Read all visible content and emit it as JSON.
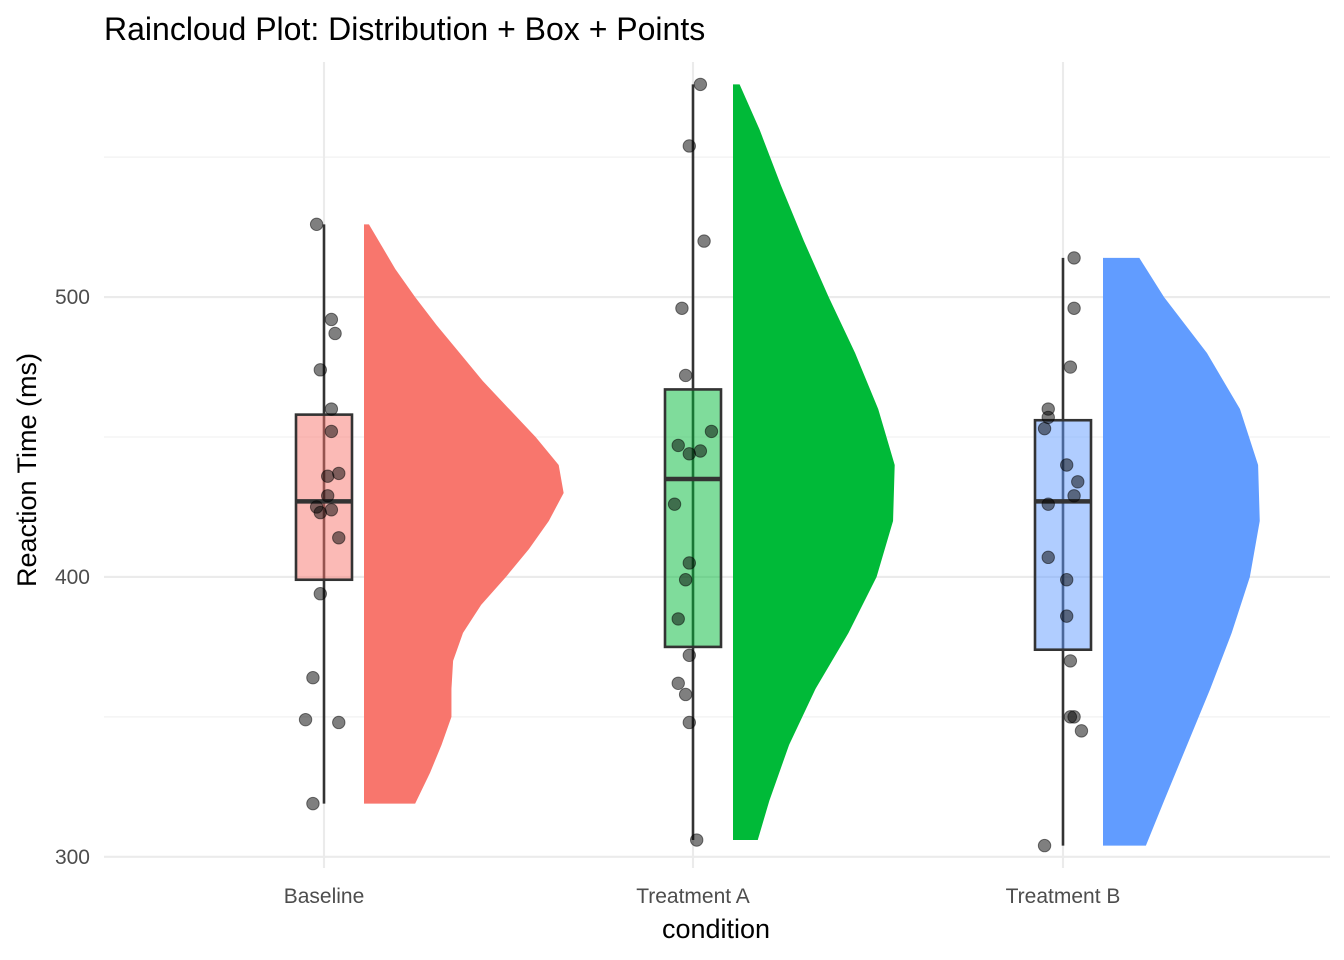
{
  "chart_data": {
    "type": "raincloud",
    "title": "Raincloud Plot: Distribution + Box + Points",
    "xlabel": "condition",
    "ylabel": "Reaction Time (ms)",
    "ylim": [
      296,
      584
    ],
    "y_ticks": [
      300,
      400,
      500
    ],
    "y_minor_ticks": [
      350,
      450,
      550
    ],
    "grid": true,
    "legend": "none",
    "categories": [
      "Baseline",
      "Treatment A",
      "Treatment B"
    ],
    "series": [
      {
        "category": "Baseline",
        "color": "#F8766D",
        "box": {
          "min": 319,
          "q1": 399,
          "median": 427,
          "q3": 458,
          "max": 526
        },
        "density": {
          "y": [
            319,
            330,
            340,
            350,
            360,
            370,
            380,
            390,
            400,
            410,
            420,
            430,
            440,
            450,
            460,
            470,
            480,
            490,
            500,
            510,
            520,
            526
          ],
          "width": [
            0.31,
            0.4,
            0.47,
            0.53,
            0.53,
            0.54,
            0.6,
            0.71,
            0.86,
            1.0,
            1.12,
            1.21,
            1.18,
            1.04,
            0.88,
            0.72,
            0.58,
            0.44,
            0.31,
            0.19,
            0.09,
            0.03
          ]
        },
        "points": [
          {
            "x": -0.02,
            "y": 526
          },
          {
            "x": 0.02,
            "y": 492
          },
          {
            "x": 0.03,
            "y": 487
          },
          {
            "x": -0.01,
            "y": 474
          },
          {
            "x": 0.02,
            "y": 460
          },
          {
            "x": 0.02,
            "y": 452
          },
          {
            "x": 0.04,
            "y": 437
          },
          {
            "x": 0.01,
            "y": 436
          },
          {
            "x": 0.01,
            "y": 429
          },
          {
            "x": -0.02,
            "y": 425
          },
          {
            "x": -0.01,
            "y": 423
          },
          {
            "x": 0.02,
            "y": 424
          },
          {
            "x": 0.04,
            "y": 414
          },
          {
            "x": -0.01,
            "y": 394
          },
          {
            "x": -0.03,
            "y": 364
          },
          {
            "x": -0.05,
            "y": 349
          },
          {
            "x": 0.04,
            "y": 348
          },
          {
            "x": -0.03,
            "y": 319
          }
        ]
      },
      {
        "category": "Treatment A",
        "color": "#00BA38",
        "box": {
          "min": 306,
          "q1": 375,
          "median": 435,
          "q3": 467,
          "max": 576
        },
        "density": {
          "y": [
            306,
            320,
            340,
            360,
            380,
            400,
            420,
            440,
            460,
            480,
            500,
            520,
            540,
            560,
            576
          ],
          "width": [
            0.15,
            0.22,
            0.34,
            0.5,
            0.7,
            0.87,
            0.97,
            0.98,
            0.88,
            0.74,
            0.58,
            0.43,
            0.29,
            0.16,
            0.04
          ]
        },
        "points": [
          {
            "x": 0.02,
            "y": 576
          },
          {
            "x": -0.01,
            "y": 554
          },
          {
            "x": 0.03,
            "y": 520
          },
          {
            "x": -0.03,
            "y": 496
          },
          {
            "x": -0.02,
            "y": 472
          },
          {
            "x": 0.05,
            "y": 452
          },
          {
            "x": -0.04,
            "y": 447
          },
          {
            "x": -0.01,
            "y": 444
          },
          {
            "x": 0.02,
            "y": 445
          },
          {
            "x": -0.05,
            "y": 426
          },
          {
            "x": -0.01,
            "y": 405
          },
          {
            "x": -0.02,
            "y": 399
          },
          {
            "x": -0.04,
            "y": 385
          },
          {
            "x": -0.01,
            "y": 372
          },
          {
            "x": -0.04,
            "y": 362
          },
          {
            "x": -0.02,
            "y": 358
          },
          {
            "x": -0.01,
            "y": 348
          },
          {
            "x": 0.01,
            "y": 306
          }
        ]
      },
      {
        "category": "Treatment B",
        "color": "#619CFF",
        "box": {
          "min": 304,
          "q1": 374,
          "median": 427,
          "q3": 456,
          "max": 514
        },
        "density": {
          "y": [
            304,
            320,
            340,
            360,
            380,
            400,
            420,
            440,
            460,
            480,
            500,
            514
          ],
          "width": [
            0.26,
            0.37,
            0.51,
            0.65,
            0.78,
            0.89,
            0.95,
            0.94,
            0.83,
            0.63,
            0.37,
            0.22
          ]
        },
        "points": [
          {
            "x": 0.03,
            "y": 514
          },
          {
            "x": 0.03,
            "y": 496
          },
          {
            "x": 0.02,
            "y": 475
          },
          {
            "x": -0.04,
            "y": 460
          },
          {
            "x": -0.04,
            "y": 457
          },
          {
            "x": -0.05,
            "y": 453
          },
          {
            "x": 0.01,
            "y": 440
          },
          {
            "x": 0.04,
            "y": 434
          },
          {
            "x": 0.03,
            "y": 429
          },
          {
            "x": -0.04,
            "y": 426
          },
          {
            "x": -0.04,
            "y": 407
          },
          {
            "x": 0.01,
            "y": 399
          },
          {
            "x": 0.01,
            "y": 386
          },
          {
            "x": 0.02,
            "y": 370
          },
          {
            "x": 0.02,
            "y": 350
          },
          {
            "x": 0.03,
            "y": 350
          },
          {
            "x": 0.05,
            "y": 345
          },
          {
            "x": -0.05,
            "y": 304
          }
        ]
      }
    ]
  }
}
